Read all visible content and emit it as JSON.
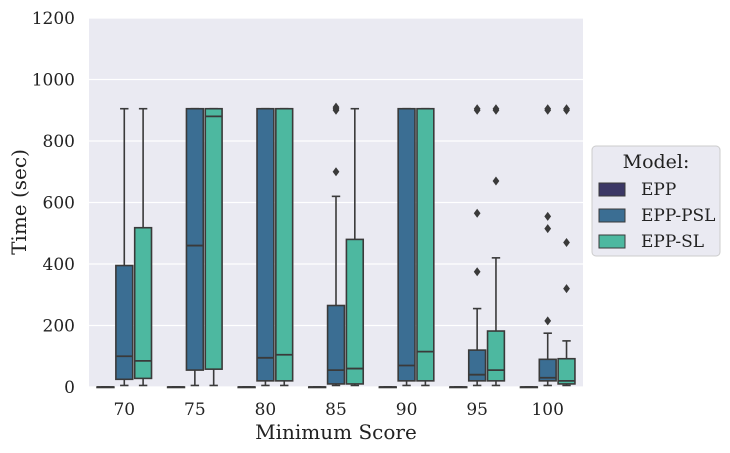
{
  "chart_data": {
    "type": "box",
    "title": "",
    "xlabel": "Minimum Score",
    "ylabel": "Time (sec)",
    "ylim": [
      0,
      1200
    ],
    "yticks": [
      0,
      200,
      400,
      600,
      800,
      1000,
      1200
    ],
    "categories": [
      "70",
      "75",
      "80",
      "85",
      "90",
      "95",
      "100"
    ],
    "grid": true,
    "legend": {
      "title": "Model:",
      "placement": "right-outside"
    },
    "series": [
      {
        "name": "EPP",
        "color": "#3b3765",
        "boxes": [
          {
            "category": "70",
            "q1": 0,
            "median": 0,
            "q3": 0,
            "whisker_low": 0,
            "whisker_high": 0,
            "outliers": []
          },
          {
            "category": "75",
            "q1": 0,
            "median": 0,
            "q3": 0,
            "whisker_low": 0,
            "whisker_high": 0,
            "outliers": []
          },
          {
            "category": "80",
            "q1": 0,
            "median": 0,
            "q3": 0,
            "whisker_low": 0,
            "whisker_high": 0,
            "outliers": []
          },
          {
            "category": "85",
            "q1": 0,
            "median": 0,
            "q3": 0,
            "whisker_low": 0,
            "whisker_high": 0,
            "outliers": []
          },
          {
            "category": "90",
            "q1": 0,
            "median": 0,
            "q3": 0,
            "whisker_low": 0,
            "whisker_high": 0,
            "outliers": []
          },
          {
            "category": "95",
            "q1": 0,
            "median": 0,
            "q3": 0,
            "whisker_low": 0,
            "whisker_high": 0,
            "outliers": []
          },
          {
            "category": "100",
            "q1": 0,
            "median": 0,
            "q3": 0,
            "whisker_low": 0,
            "whisker_high": 0,
            "outliers": []
          }
        ]
      },
      {
        "name": "EPP-PSL",
        "color": "#3b6e93",
        "boxes": [
          {
            "category": "70",
            "q1": 25,
            "median": 100,
            "q3": 395,
            "whisker_low": 5,
            "whisker_high": 905,
            "outliers": []
          },
          {
            "category": "75",
            "q1": 55,
            "median": 460,
            "q3": 905,
            "whisker_low": 5,
            "whisker_high": 905,
            "outliers": []
          },
          {
            "category": "80",
            "q1": 20,
            "median": 95,
            "q3": 905,
            "whisker_low": 5,
            "whisker_high": 905,
            "outliers": []
          },
          {
            "category": "85",
            "q1": 10,
            "median": 55,
            "q3": 265,
            "whisker_low": 5,
            "whisker_high": 620,
            "outliers": [
              700,
              900,
              905,
              910
            ]
          },
          {
            "category": "90",
            "q1": 20,
            "median": 70,
            "q3": 905,
            "whisker_low": 5,
            "whisker_high": 905,
            "outliers": []
          },
          {
            "category": "95",
            "q1": 20,
            "median": 40,
            "q3": 120,
            "whisker_low": 5,
            "whisker_high": 255,
            "outliers": [
              375,
              565,
              900,
              905
            ]
          },
          {
            "category": "100",
            "q1": 20,
            "median": 30,
            "q3": 90,
            "whisker_low": 5,
            "whisker_high": 175,
            "outliers": [
              215,
              515,
              555,
              900,
              905
            ]
          }
        ]
      },
      {
        "name": "EPP-SL",
        "color": "#4db8a0",
        "boxes": [
          {
            "category": "70",
            "q1": 28,
            "median": 85,
            "q3": 518,
            "whisker_low": 5,
            "whisker_high": 905,
            "outliers": []
          },
          {
            "category": "75",
            "q1": 58,
            "median": 880,
            "q3": 905,
            "whisker_low": 5,
            "whisker_high": 905,
            "outliers": []
          },
          {
            "category": "80",
            "q1": 20,
            "median": 105,
            "q3": 905,
            "whisker_low": 5,
            "whisker_high": 905,
            "outliers": []
          },
          {
            "category": "85",
            "q1": 10,
            "median": 60,
            "q3": 480,
            "whisker_low": 5,
            "whisker_high": 905,
            "outliers": []
          },
          {
            "category": "90",
            "q1": 20,
            "median": 115,
            "q3": 905,
            "whisker_low": 5,
            "whisker_high": 905,
            "outliers": []
          },
          {
            "category": "95",
            "q1": 20,
            "median": 55,
            "q3": 182,
            "whisker_low": 5,
            "whisker_high": 420,
            "outliers": [
              670,
              900,
              905
            ]
          },
          {
            "category": "100",
            "q1": 10,
            "median": 20,
            "q3": 92,
            "whisker_low": 5,
            "whisker_high": 150,
            "outliers": [
              320,
              470,
              900,
              905
            ]
          }
        ]
      }
    ]
  }
}
